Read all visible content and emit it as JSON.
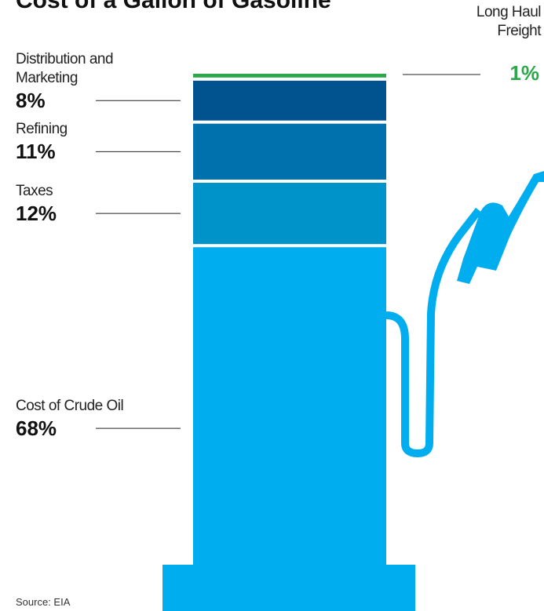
{
  "chart_data": {
    "type": "stacked-column",
    "title": "Cost of a Gallon of Gasoline",
    "categories": [
      "Cost of Crude Oil",
      "Taxes",
      "Refining",
      "Distribution and Marketing",
      "Long Haul Freight"
    ],
    "values": [
      68,
      12,
      11,
      8,
      1
    ],
    "value_labels": [
      "68%",
      "12%",
      "11%",
      "8%",
      "1%"
    ],
    "colors": [
      "#00aeef",
      "#0093c9",
      "#0071ad",
      "#00538f",
      "#2ca84a"
    ],
    "source": "Source: EIA"
  }
}
